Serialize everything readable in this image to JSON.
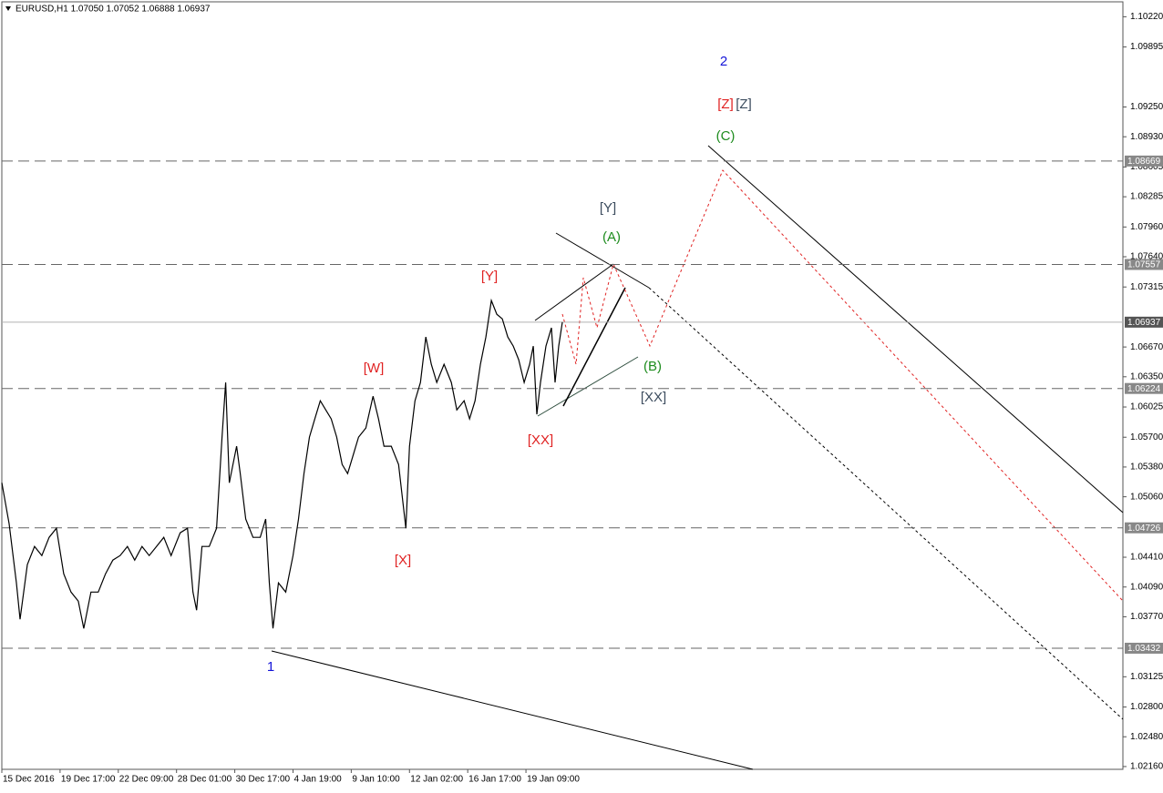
{
  "chart_data": {
    "type": "line",
    "title": "EURUSD,H1  1.07050 1.07052 1.06888 1.06937",
    "color": "#000000",
    "x": [
      0,
      8,
      16,
      20,
      28,
      36,
      44,
      52,
      60,
      68,
      76,
      84,
      90,
      98,
      106,
      114,
      122,
      130,
      138,
      146,
      154,
      162,
      170,
      178,
      186,
      196,
      204,
      210,
      214,
      220,
      228,
      236,
      242,
      246,
      250,
      258,
      262,
      268,
      276,
      284,
      290,
      294,
      298,
      304,
      312,
      320,
      326,
      332,
      338,
      344,
      350,
      356,
      362,
      368,
      374,
      380,
      386,
      392,
      400,
      408,
      414,
      420,
      428,
      436,
      444,
      448,
      454,
      460,
      466,
      472,
      478,
      486,
      494,
      500,
      508,
      514,
      520,
      526,
      532,
      538,
      544,
      550,
      556,
      562,
      568,
      574,
      580,
      584,
      588,
      592,
      598,
      604,
      608,
      612,
      616
    ],
    "values": [
      1.05211,
      1.04771,
      1.04134,
      1.03743,
      1.0433,
      1.04526,
      1.04428,
      1.04624,
      1.04722,
      1.04232,
      1.04036,
      1.03939,
      1.03645,
      1.04036,
      1.04036,
      1.04232,
      1.04379,
      1.04428,
      1.04526,
      1.04379,
      1.04526,
      1.04428,
      1.04526,
      1.04624,
      1.04428,
      1.04673,
      1.04722,
      1.04036,
      1.03841,
      1.04526,
      1.04526,
      1.04722,
      1.05701,
      1.06288,
      1.05211,
      1.05603,
      1.05309,
      1.0482,
      1.04624,
      1.04624,
      1.0482,
      1.04134,
      1.03645,
      1.04134,
      1.04036,
      1.04428,
      1.0482,
      1.05309,
      1.05701,
      1.05897,
      1.06092,
      1.05994,
      1.05897,
      1.05701,
      1.05407,
      1.05309,
      1.05505,
      1.05701,
      1.05799,
      1.06141,
      1.05897,
      1.05603,
      1.05603,
      1.05407,
      1.04722,
      1.05603,
      1.06092,
      1.06288,
      1.06778,
      1.06484,
      1.06288,
      1.06484,
      1.06288,
      1.05994,
      1.06092,
      1.05897,
      1.06092,
      1.06484,
      1.06778,
      1.07169,
      1.07022,
      1.06973,
      1.06778,
      1.0668,
      1.06533,
      1.06288,
      1.06484,
      1.0668,
      1.05946,
      1.06288,
      1.0668,
      1.06876,
      1.06288,
      1.0668,
      1.06937
    ],
    "xlim": [
      0,
      1232
    ],
    "xticks": [
      {
        "value": 0,
        "label": "15 Dec 2016"
      },
      {
        "value": 64,
        "label": "19 Dec 17:00"
      },
      {
        "value": 128,
        "label": "22 Dec 09:00"
      },
      {
        "value": 192,
        "label": "28 Dec 01:00"
      },
      {
        "value": 256,
        "label": "30 Dec 17:00"
      },
      {
        "value": 320,
        "label": "4 Jan 19:00"
      },
      {
        "value": 384,
        "label": "9 Jan 10:00"
      },
      {
        "value": 448,
        "label": "12 Jan 02:00"
      },
      {
        "value": 512,
        "label": "16 Jan 17:00"
      },
      {
        "value": 576,
        "label": "19 Jan 09:00"
      }
    ],
    "ylim": [
      1.0213,
      1.104
    ],
    "yticks": [
      {
        "value": 1.1022,
        "label": "1.10220"
      },
      1.09895,
      {
        "value": 1.0925,
        "label": "1.09250"
      },
      {
        "value": 1.0893,
        "label": "1.08930"
      },
      1.08605,
      1.08285,
      {
        "value": 1.0796,
        "label": "1.07960"
      },
      {
        "value": 1.0764,
        "label": "1.07640"
      },
      1.07315,
      {
        "value": 1.0667,
        "label": "1.06670"
      },
      {
        "value": 1.0635,
        "label": "1.06350"
      },
      1.06025,
      {
        "value": 1.057,
        "label": "1.05700"
      },
      {
        "value": 1.0538,
        "label": "1.05380"
      },
      {
        "value": 1.0506,
        "label": "1.05060"
      },
      {
        "value": 1.0441,
        "label": "1.04410"
      },
      {
        "value": 1.0409,
        "label": "1.04090"
      },
      {
        "value": 1.0377,
        "label": "1.03770"
      },
      1.03125,
      {
        "value": 1.028,
        "label": "1.02800"
      },
      {
        "value": 1.0248,
        "label": "1.02480"
      },
      {
        "value": 1.0216,
        "label": "1.02160"
      }
    ],
    "levels": [
      1.08669,
      1.07557,
      1.06937,
      1.06224,
      1.04726,
      1.03432
    ],
    "annotations": [
      {
        "text": "1",
        "color": "#1414d8"
      },
      {
        "text": "2",
        "color": "#1414d8"
      },
      {
        "text": "[W]",
        "color": "#e02222"
      },
      {
        "text": "[X]",
        "color": "#e02222"
      },
      {
        "text": "[Y]",
        "color": "#e02222"
      },
      {
        "text": "[XX]",
        "color": "#e02222"
      },
      {
        "text": "[Y]",
        "color": "#3c4c5e"
      },
      {
        "text": "(A)",
        "color": "#1e8c1e"
      },
      {
        "text": "(B)",
        "color": "#1e8c1e"
      },
      {
        "text": "[XX]",
        "color": "#3c4c5e"
      },
      {
        "text": "(C)",
        "color": "#1e8c1e"
      },
      {
        "text": "[Z]",
        "color": "#e02222"
      },
      {
        "text": "[Z]",
        "color": "#3c4c5e"
      }
    ]
  }
}
